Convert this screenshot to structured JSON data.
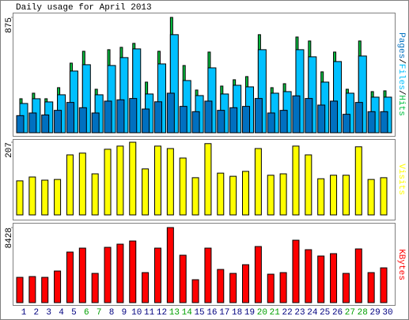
{
  "chart_data": [
    {
      "type": "bar",
      "title": "Daily usage for April 2013",
      "ylim": [
        0,
        875
      ],
      "yticks": [
        875
      ],
      "legend_separator": "/",
      "series": [
        {
          "name": "Pages",
          "color": "#0070c0",
          "values": [
            130,
            150,
            135,
            170,
            230,
            190,
            150,
            240,
            250,
            260,
            180,
            235,
            300,
            200,
            160,
            240,
            170,
            190,
            200,
            260,
            150,
            170,
            280,
            260,
            210,
            240,
            140,
            230,
            160,
            160
          ]
        },
        {
          "name": "Files",
          "color": "#00c0ff",
          "values": [
            222,
            258,
            234,
            288,
            468,
            516,
            288,
            510,
            570,
            636,
            294,
            522,
            744,
            396,
            282,
            492,
            294,
            360,
            348,
            630,
            300,
            312,
            630,
            576,
            384,
            540,
            300,
            582,
            270,
            270
          ]
        },
        {
          "name": "Hits",
          "color": "#00c040",
          "values": [
            258,
            300,
            258,
            342,
            528,
            618,
            330,
            630,
            648,
            678,
            384,
            618,
            875,
            510,
            324,
            612,
            354,
            402,
            426,
            744,
            342,
            372,
            726,
            696,
            462,
            612,
            330,
            696,
            312,
            318
          ]
        }
      ]
    },
    {
      "type": "bar",
      "ylim": [
        0,
        207
      ],
      "yticks": [
        207
      ],
      "series": [
        {
          "name": "Visits",
          "color": "#ffff00",
          "values": [
            97,
            108,
            99,
            101,
            171,
            176,
            117,
            187,
            196,
            207,
            131,
            196,
            189,
            162,
            106,
            203,
            119,
            110,
            124,
            189,
            113,
            117,
            196,
            171,
            103,
            113,
            113,
            194,
            101,
            106
          ]
        }
      ]
    },
    {
      "type": "bar",
      "ylim": [
        0,
        8428
      ],
      "yticks": [
        8428
      ],
      "categories": [
        "1",
        "2",
        "3",
        "4",
        "5",
        "6",
        "7",
        "8",
        "9",
        "10",
        "11",
        "12",
        "13",
        "14",
        "15",
        "16",
        "17",
        "18",
        "19",
        "20",
        "21",
        "22",
        "23",
        "24",
        "25",
        "26",
        "27",
        "28",
        "29",
        "30"
      ],
      "category_colors": [
        "#000080",
        "#000080",
        "#000080",
        "#000080",
        "#000080",
        "#00a000",
        "#00a000",
        "#000080",
        "#000080",
        "#000080",
        "#000080",
        "#000080",
        "#00a000",
        "#00a000",
        "#000080",
        "#000080",
        "#000080",
        "#000080",
        "#000080",
        "#00a000",
        "#00a000",
        "#000080",
        "#000080",
        "#000080",
        "#000080",
        "#000080",
        "#00a000",
        "#00a000",
        "#000080",
        "#000080"
      ],
      "series": [
        {
          "name": "KBytes",
          "color": "#ff0000",
          "values": [
            2838,
            2927,
            2838,
            3548,
            5677,
            6120,
            3282,
            6209,
            6564,
            6919,
            3371,
            6120,
            8428,
            5322,
            2572,
            6120,
            3725,
            3282,
            4258,
            6298,
            3193,
            3371,
            7007,
            5943,
            5233,
            5500,
            3282,
            6031,
            3371,
            3903
          ]
        }
      ]
    }
  ]
}
